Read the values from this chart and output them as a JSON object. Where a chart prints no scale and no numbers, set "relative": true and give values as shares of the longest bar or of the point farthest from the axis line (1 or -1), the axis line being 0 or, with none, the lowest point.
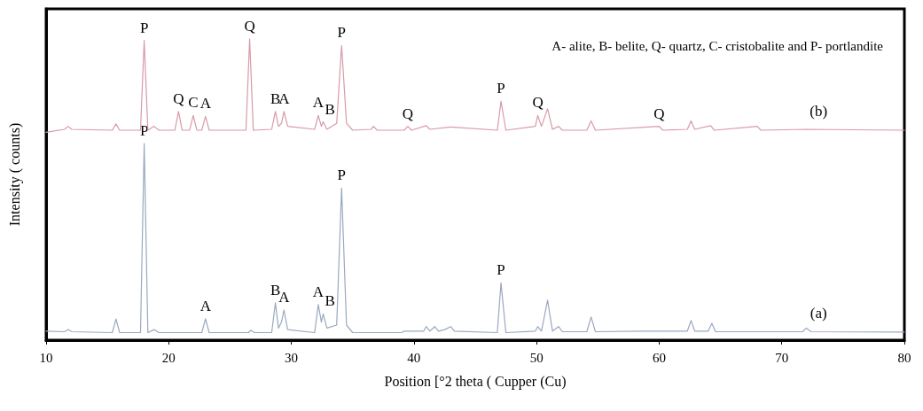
{
  "chart_data": {
    "type": "line",
    "relative": true,
    "xlabel": "Position [°2 theta ( Cupper (Cu)",
    "ylabel": "Intensity ( counts)",
    "xlim": [
      10,
      80
    ],
    "xticks": [
      10,
      20,
      30,
      40,
      50,
      60,
      70,
      80
    ],
    "tick_labels": "x",
    "grid": false,
    "marker": "none",
    "line_style": "solid",
    "series": [
      {
        "name": "(a)",
        "color": "#9aa8c0",
        "x": [
          10,
          11.5,
          11.8,
          12.1,
          15.4,
          15.7,
          16,
          17.7,
          18,
          18.3,
          18.8,
          19.2,
          22.7,
          23,
          23.3,
          26.5,
          26.7,
          27,
          28.4,
          28.7,
          28.95,
          29.2,
          29.4,
          29.7,
          31.9,
          32.2,
          32.45,
          32.6,
          32.9,
          33.7,
          34.1,
          34.5,
          35,
          39,
          39.2,
          40.8,
          41,
          41.3,
          41.7,
          42,
          42.5,
          43,
          43.3,
          46.8,
          47.1,
          47.5,
          49.9,
          50.1,
          50.4,
          50.9,
          51.3,
          51.8,
          52.1,
          54.1,
          54.45,
          54.8,
          58.5,
          60,
          62.3,
          62.6,
          62.9,
          64,
          64.3,
          64.6,
          71.7,
          72,
          72.4,
          80
        ],
        "values": [
          0.03,
          0.028,
          0.035,
          0.028,
          0.025,
          0.07,
          0.025,
          0.025,
          0.653,
          0.025,
          0.035,
          0.025,
          0.025,
          0.071,
          0.025,
          0.025,
          0.033,
          0.025,
          0.025,
          0.124,
          0.04,
          0.06,
          0.1,
          0.035,
          0.025,
          0.118,
          0.06,
          0.087,
          0.04,
          0.05,
          0.505,
          0.05,
          0.025,
          0.025,
          0.03,
          0.03,
          0.045,
          0.03,
          0.045,
          0.03,
          0.035,
          0.045,
          0.03,
          0.025,
          0.19,
          0.025,
          0.03,
          0.045,
          0.03,
          0.133,
          0.03,
          0.045,
          0.028,
          0.028,
          0.077,
          0.028,
          0.03,
          0.03,
          0.03,
          0.065,
          0.03,
          0.03,
          0.056,
          0.028,
          0.028,
          0.04,
          0.028,
          0.027
        ]
      },
      {
        "name": "(b)",
        "color": "#d89aa8",
        "x": [
          10,
          11.5,
          11.8,
          12.1,
          15.4,
          15.7,
          16,
          17.7,
          18,
          18.3,
          18.8,
          19.2,
          20.5,
          20.8,
          21.1,
          21.7,
          22,
          22.3,
          22.7,
          23,
          23.3,
          26.3,
          26.6,
          26.9,
          28.4,
          28.7,
          28.95,
          29.2,
          29.4,
          29.7,
          31.9,
          32.2,
          32.45,
          32.6,
          32.9,
          33.7,
          34.1,
          34.5,
          35,
          36.5,
          36.7,
          37,
          39.2,
          39.5,
          39.8,
          41,
          41.3,
          43,
          46.8,
          47.1,
          47.5,
          49.9,
          50.1,
          50.4,
          50.9,
          51.3,
          51.8,
          52.1,
          54.1,
          54.45,
          54.8,
          60,
          60.3,
          62.3,
          62.6,
          62.9,
          64.2,
          64.5,
          68,
          68.3,
          72,
          80
        ],
        "values": [
          0.69,
          0.7,
          0.71,
          0.7,
          0.697,
          0.718,
          0.697,
          0.697,
          0.995,
          0.697,
          0.71,
          0.697,
          0.697,
          0.759,
          0.697,
          0.697,
          0.746,
          0.697,
          0.697,
          0.743,
          0.697,
          0.697,
          1.0,
          0.697,
          0.7,
          0.759,
          0.71,
          0.72,
          0.759,
          0.71,
          0.7,
          0.746,
          0.71,
          0.725,
          0.7,
          0.72,
          0.978,
          0.72,
          0.697,
          0.7,
          0.71,
          0.697,
          0.697,
          0.71,
          0.697,
          0.712,
          0.7,
          0.708,
          0.697,
          0.793,
          0.697,
          0.71,
          0.746,
          0.71,
          0.768,
          0.7,
          0.71,
          0.697,
          0.697,
          0.728,
          0.697,
          0.71,
          0.697,
          0.7,
          0.728,
          0.7,
          0.712,
          0.697,
          0.71,
          0.697,
          0.7,
          0.697
        ]
      }
    ],
    "annotations": [
      "A- alite, B- belite, Q- quartz, C- cristobalite and P- portlandite",
      {
        "text": "P",
        "x": 18,
        "y": 0.995
      },
      {
        "text": "Q",
        "x": 26.6,
        "y": 1.0
      },
      {
        "text": "Q",
        "x": 20.8,
        "y": 0.759
      },
      {
        "text": "C",
        "x": 22.0,
        "y": 0.746
      },
      {
        "text": "A",
        "x": 23.0,
        "y": 0.743
      },
      {
        "text": "B",
        "x": 28.7,
        "y": 0.759
      },
      {
        "text": "A",
        "x": 29.4,
        "y": 0.759
      },
      {
        "text": "A",
        "x": 32.2,
        "y": 0.746
      },
      {
        "text": "B",
        "x": 32.6,
        "y": 0.725
      },
      {
        "text": "P",
        "x": 34.1,
        "y": 0.978
      },
      {
        "text": "Q",
        "x": 39.5,
        "y": 0.71
      },
      {
        "text": "P",
        "x": 47.1,
        "y": 0.793
      },
      {
        "text": "Q",
        "x": 50.1,
        "y": 0.746
      },
      {
        "text": "Q",
        "x": 60.0,
        "y": 0.71
      },
      {
        "text": "P",
        "x": 18,
        "y": 0.653
      },
      {
        "text": "P",
        "x": 34.1,
        "y": 0.505
      },
      {
        "text": "A",
        "x": 23.0,
        "y": 0.071
      },
      {
        "text": "B",
        "x": 28.7,
        "y": 0.124
      },
      {
        "text": "A",
        "x": 29.4,
        "y": 0.1
      },
      {
        "text": "A",
        "x": 32.2,
        "y": 0.118
      },
      {
        "text": "B",
        "x": 32.6,
        "y": 0.087
      },
      {
        "text": "P",
        "x": 47.1,
        "y": 0.19
      }
    ]
  }
}
